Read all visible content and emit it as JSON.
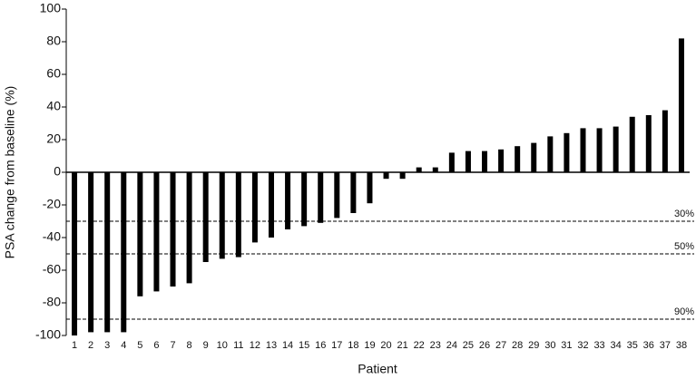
{
  "chart_data": {
    "type": "bar",
    "xlabel": "Patient",
    "ylabel": "PSA change from baseline (%)",
    "categories": [
      "1",
      "2",
      "3",
      "4",
      "5",
      "6",
      "7",
      "8",
      "9",
      "10",
      "11",
      "12",
      "13",
      "14",
      "15",
      "16",
      "17",
      "18",
      "19",
      "20",
      "21",
      "22",
      "23",
      "24",
      "25",
      "26",
      "27",
      "28",
      "29",
      "30",
      "31",
      "32",
      "33",
      "34",
      "35",
      "36",
      "37",
      "38"
    ],
    "values": [
      -100,
      -98,
      -98,
      -98,
      -76,
      -73,
      -70,
      -68,
      -55,
      -53,
      -52,
      -43,
      -40,
      -35,
      -33,
      -31,
      -28,
      -25,
      -19,
      -4,
      -4,
      3,
      3,
      12,
      13,
      13,
      14,
      16,
      18,
      22,
      24,
      27,
      27,
      28,
      34,
      35,
      38,
      82
    ],
    "color": "#000000",
    "ylim": [
      -100,
      100
    ],
    "yticks": [
      -100,
      -80,
      -60,
      -40,
      -20,
      0,
      20,
      40,
      60,
      80,
      100
    ],
    "reference_lines": [
      {
        "value": -30,
        "label": "30%"
      },
      {
        "value": -50,
        "label": "50%"
      },
      {
        "value": -90,
        "label": "90%"
      }
    ]
  }
}
